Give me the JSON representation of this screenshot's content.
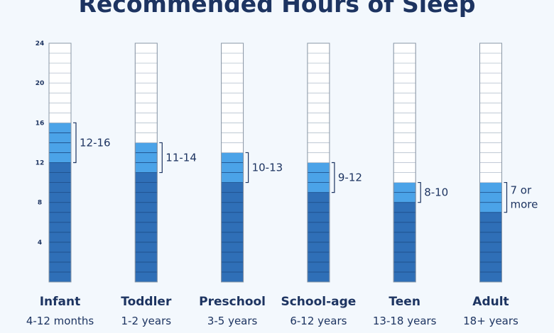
{
  "chart_data": {
    "type": "bar",
    "title": "Recommended Hours of Sleep",
    "ylim": [
      0,
      24
    ],
    "yticks": [
      4,
      8,
      12,
      16,
      20,
      24
    ],
    "grid": false,
    "categories": [
      {
        "name": "Infant",
        "age": "4-12 months",
        "min": 12,
        "max": 16,
        "range_label": [
          "12-16"
        ]
      },
      {
        "name": "Toddler",
        "age": "1-2 years",
        "min": 11,
        "max": 14,
        "range_label": [
          "11-14"
        ]
      },
      {
        "name": "Preschool",
        "age": "3-5 years",
        "min": 10,
        "max": 13,
        "range_label": [
          "10-13"
        ]
      },
      {
        "name": "School-age",
        "age": "6-12 years",
        "min": 9,
        "max": 12,
        "range_label": [
          "9-12"
        ]
      },
      {
        "name": "Teen",
        "age": "13-18 years",
        "min": 8,
        "max": 10,
        "range_label": [
          "8-10"
        ]
      },
      {
        "name": "Adult",
        "age": "18+ years",
        "min": 7,
        "max": 10,
        "range_label": [
          "7 or",
          "more"
        ]
      }
    ]
  },
  "colors": {
    "required": "#2f6fb7",
    "range": "#4ba3e8",
    "empty": "#ffffff",
    "text": "#1d3461"
  }
}
